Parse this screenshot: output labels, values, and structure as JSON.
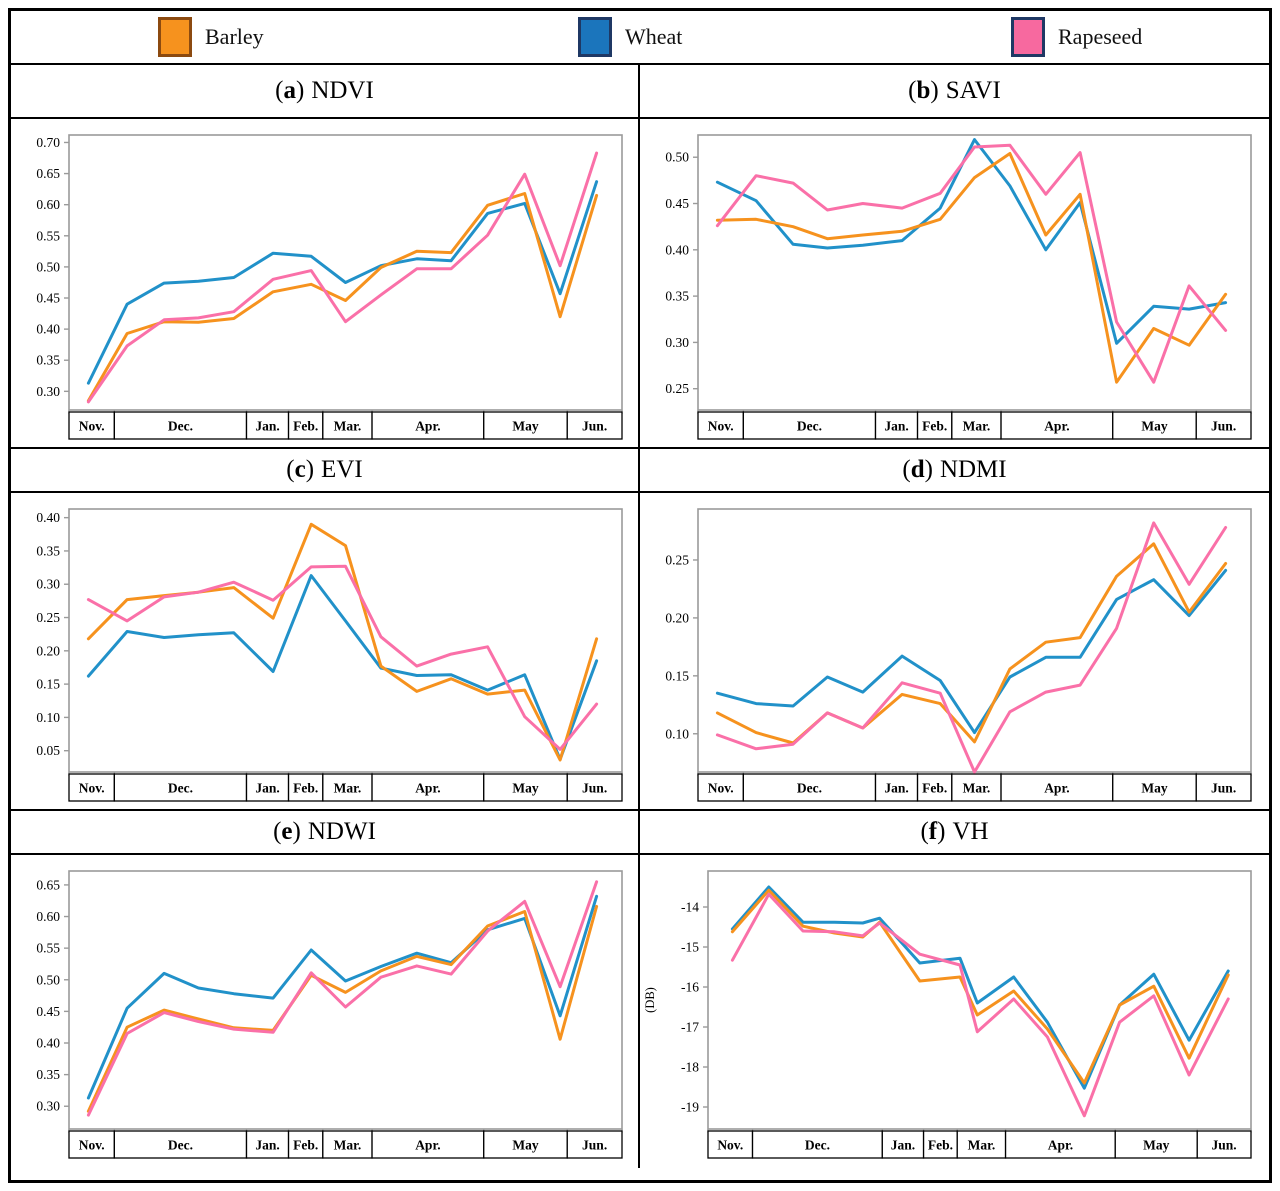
{
  "legend": {
    "items": [
      {
        "label": "Barley",
        "crop": "barley",
        "color": "#F6921E",
        "border": "#8C4A10"
      },
      {
        "label": "Wheat",
        "crop": "wheat",
        "color": "#1B75BC",
        "border": "#1F3864"
      },
      {
        "label": "Rapeseed",
        "crop": "rapeseed",
        "color": "#F7699F",
        "border": "#1F3864"
      }
    ]
  },
  "colors": {
    "barley": "#F6921E",
    "wheat": "#2191C9",
    "rapeseed": "#FA70A8"
  },
  "chart_layout": {
    "months": [
      "Nov.",
      "Dec.",
      "Jan.",
      "Feb.",
      "Mar.",
      "Apr.",
      "May",
      "Jun."
    ],
    "month_boundaries": [
      0,
      0.082,
      0.321,
      0.397,
      0.459,
      0.548,
      0.75,
      0.901,
      1.0
    ],
    "x_optical": [
      0.035,
      0.105,
      0.172,
      0.234,
      0.298,
      0.369,
      0.438,
      0.5,
      0.564,
      0.629,
      0.691,
      0.757,
      0.824,
      0.888,
      0.954
    ],
    "x_vh": [
      0.045,
      0.112,
      0.175,
      0.233,
      0.285,
      0.316,
      0.39,
      0.464,
      0.496,
      0.563,
      0.625,
      0.693,
      0.758,
      0.821,
      0.886,
      0.958
    ],
    "grid": false,
    "legend_position": "top"
  },
  "chart_data": [
    {
      "id": "ndvi",
      "letter": "a",
      "name": "NDVI",
      "type": "line",
      "xlabel": "",
      "ylabel": "",
      "ylim": [
        0.27,
        0.712
      ],
      "yticks": [
        0.7,
        0.65,
        0.6,
        0.55,
        0.5,
        0.45,
        0.4,
        0.35,
        0.3
      ],
      "tick_decimals": 2,
      "x_key": "x_optical",
      "series": [
        {
          "name": "Barley",
          "crop": "barley",
          "values": [
            0.285,
            0.393,
            0.412,
            0.411,
            0.417,
            0.46,
            0.472,
            0.446,
            0.499,
            0.525,
            0.523,
            0.599,
            0.618,
            0.42,
            0.615
          ]
        },
        {
          "name": "Wheat",
          "crop": "wheat",
          "values": [
            0.313,
            0.44,
            0.474,
            0.477,
            0.483,
            0.522,
            0.517,
            0.475,
            0.502,
            0.513,
            0.51,
            0.586,
            0.602,
            0.457,
            0.637
          ]
        },
        {
          "name": "Rapeseed",
          "crop": "rapeseed",
          "values": [
            0.283,
            0.373,
            0.415,
            0.418,
            0.428,
            0.48,
            0.494,
            0.412,
            0.455,
            0.497,
            0.497,
            0.551,
            0.649,
            0.502,
            0.683
          ]
        }
      ]
    },
    {
      "id": "savi",
      "letter": "b",
      "name": "SAVI",
      "type": "line",
      "xlabel": "",
      "ylabel": "",
      "ylim": [
        0.227,
        0.524
      ],
      "yticks": [
        0.5,
        0.45,
        0.4,
        0.35,
        0.3,
        0.25
      ],
      "tick_decimals": 2,
      "x_key": "x_optical",
      "series": [
        {
          "name": "Barley",
          "crop": "barley",
          "values": [
            0.432,
            0.433,
            0.425,
            0.412,
            0.416,
            0.42,
            0.433,
            0.478,
            0.504,
            0.416,
            0.46,
            0.257,
            0.315,
            0.297,
            0.352
          ]
        },
        {
          "name": "Wheat",
          "crop": "wheat",
          "values": [
            0.473,
            0.453,
            0.406,
            0.402,
            0.405,
            0.41,
            0.445,
            0.519,
            0.469,
            0.4,
            0.451,
            0.299,
            0.339,
            0.336,
            0.343
          ]
        },
        {
          "name": "Rapeseed",
          "crop": "rapeseed",
          "values": [
            0.426,
            0.48,
            0.472,
            0.443,
            0.45,
            0.445,
            0.461,
            0.511,
            0.513,
            0.46,
            0.505,
            0.322,
            0.257,
            0.361,
            0.313
          ]
        }
      ]
    },
    {
      "id": "evi",
      "letter": "c",
      "name": "EVI",
      "type": "line",
      "xlabel": "",
      "ylabel": "",
      "ylim": [
        0.018,
        0.413
      ],
      "yticks": [
        0.4,
        0.35,
        0.3,
        0.25,
        0.2,
        0.15,
        0.1,
        0.05
      ],
      "tick_decimals": 2,
      "x_key": "x_optical",
      "series": [
        {
          "name": "Barley",
          "crop": "barley",
          "values": [
            0.218,
            0.277,
            0.283,
            0.288,
            0.295,
            0.249,
            0.39,
            0.358,
            0.177,
            0.139,
            0.158,
            0.135,
            0.141,
            0.036,
            0.218
          ]
        },
        {
          "name": "Wheat",
          "crop": "wheat",
          "values": [
            0.162,
            0.229,
            0.22,
            0.224,
            0.227,
            0.169,
            0.313,
            0.245,
            0.174,
            0.163,
            0.164,
            0.141,
            0.164,
            0.037,
            0.185
          ]
        },
        {
          "name": "Rapeseed",
          "crop": "rapeseed",
          "values": [
            0.277,
            0.245,
            0.281,
            0.288,
            0.303,
            0.276,
            0.326,
            0.327,
            0.221,
            0.177,
            0.195,
            0.206,
            0.101,
            0.052,
            0.12
          ]
        }
      ]
    },
    {
      "id": "ndmi",
      "letter": "d",
      "name": "NDMI",
      "type": "line",
      "xlabel": "",
      "ylabel": "",
      "ylim": [
        0.067,
        0.294
      ],
      "yticks": [
        0.25,
        0.2,
        0.15,
        0.1
      ],
      "tick_decimals": 2,
      "x_key": "x_optical",
      "series": [
        {
          "name": "Barley",
          "crop": "barley",
          "values": [
            0.118,
            0.101,
            0.092,
            0.118,
            0.105,
            0.134,
            0.126,
            0.093,
            0.156,
            0.179,
            0.183,
            0.236,
            0.264,
            0.205,
            0.247
          ]
        },
        {
          "name": "Wheat",
          "crop": "wheat",
          "values": [
            0.135,
            0.126,
            0.124,
            0.149,
            0.136,
            0.167,
            0.146,
            0.101,
            0.149,
            0.166,
            0.166,
            0.216,
            0.233,
            0.202,
            0.241
          ]
        },
        {
          "name": "Rapeseed",
          "crop": "rapeseed",
          "values": [
            0.099,
            0.087,
            0.091,
            0.118,
            0.105,
            0.144,
            0.135,
            0.067,
            0.119,
            0.136,
            0.142,
            0.191,
            0.282,
            0.229,
            0.278
          ]
        }
      ]
    },
    {
      "id": "ndwi",
      "letter": "e",
      "name": "NDWI",
      "type": "line",
      "xlabel": "",
      "ylabel": "",
      "ylim": [
        0.264,
        0.672
      ],
      "yticks": [
        0.65,
        0.6,
        0.55,
        0.5,
        0.45,
        0.4,
        0.35,
        0.3
      ],
      "tick_decimals": 2,
      "x_key": "x_optical",
      "series": [
        {
          "name": "Barley",
          "crop": "barley",
          "values": [
            0.292,
            0.425,
            0.452,
            0.438,
            0.424,
            0.42,
            0.507,
            0.48,
            0.514,
            0.537,
            0.524,
            0.585,
            0.608,
            0.406,
            0.616
          ]
        },
        {
          "name": "Wheat",
          "crop": "wheat",
          "values": [
            0.313,
            0.455,
            0.51,
            0.487,
            0.478,
            0.471,
            0.547,
            0.498,
            0.521,
            0.542,
            0.527,
            0.579,
            0.597,
            0.443,
            0.632
          ]
        },
        {
          "name": "Rapeseed",
          "crop": "rapeseed",
          "values": [
            0.286,
            0.415,
            0.448,
            0.434,
            0.422,
            0.417,
            0.511,
            0.457,
            0.504,
            0.522,
            0.509,
            0.577,
            0.624,
            0.489,
            0.655
          ]
        }
      ]
    },
    {
      "id": "vh",
      "letter": "f",
      "name": "VH",
      "type": "line",
      "xlabel": "",
      "ylabel": "(DB)",
      "ylim": [
        -19.55,
        -13.1
      ],
      "yticks": [
        -14,
        -15,
        -16,
        -17,
        -18,
        -19
      ],
      "tick_decimals": 0,
      "x_key": "x_vh",
      "series": [
        {
          "name": "Barley",
          "crop": "barley",
          "values": [
            -14.62,
            -13.58,
            -14.48,
            -14.65,
            -14.75,
            -14.38,
            -15.85,
            -15.75,
            -16.7,
            -16.1,
            -17.05,
            -18.4,
            -16.45,
            -15.98,
            -17.78,
            -15.7
          ]
        },
        {
          "name": "Wheat",
          "crop": "wheat",
          "values": [
            -14.55,
            -13.5,
            -14.38,
            -14.38,
            -14.4,
            -14.28,
            -15.4,
            -15.28,
            -16.4,
            -15.75,
            -16.88,
            -18.53,
            -16.45,
            -15.68,
            -17.33,
            -15.6
          ]
        },
        {
          "name": "Rapeseed",
          "crop": "rapeseed",
          "values": [
            -15.33,
            -13.68,
            -14.6,
            -14.62,
            -14.72,
            -14.4,
            -15.18,
            -15.45,
            -17.12,
            -16.3,
            -17.25,
            -19.22,
            -16.88,
            -16.22,
            -18.2,
            -16.3
          ]
        }
      ]
    }
  ]
}
